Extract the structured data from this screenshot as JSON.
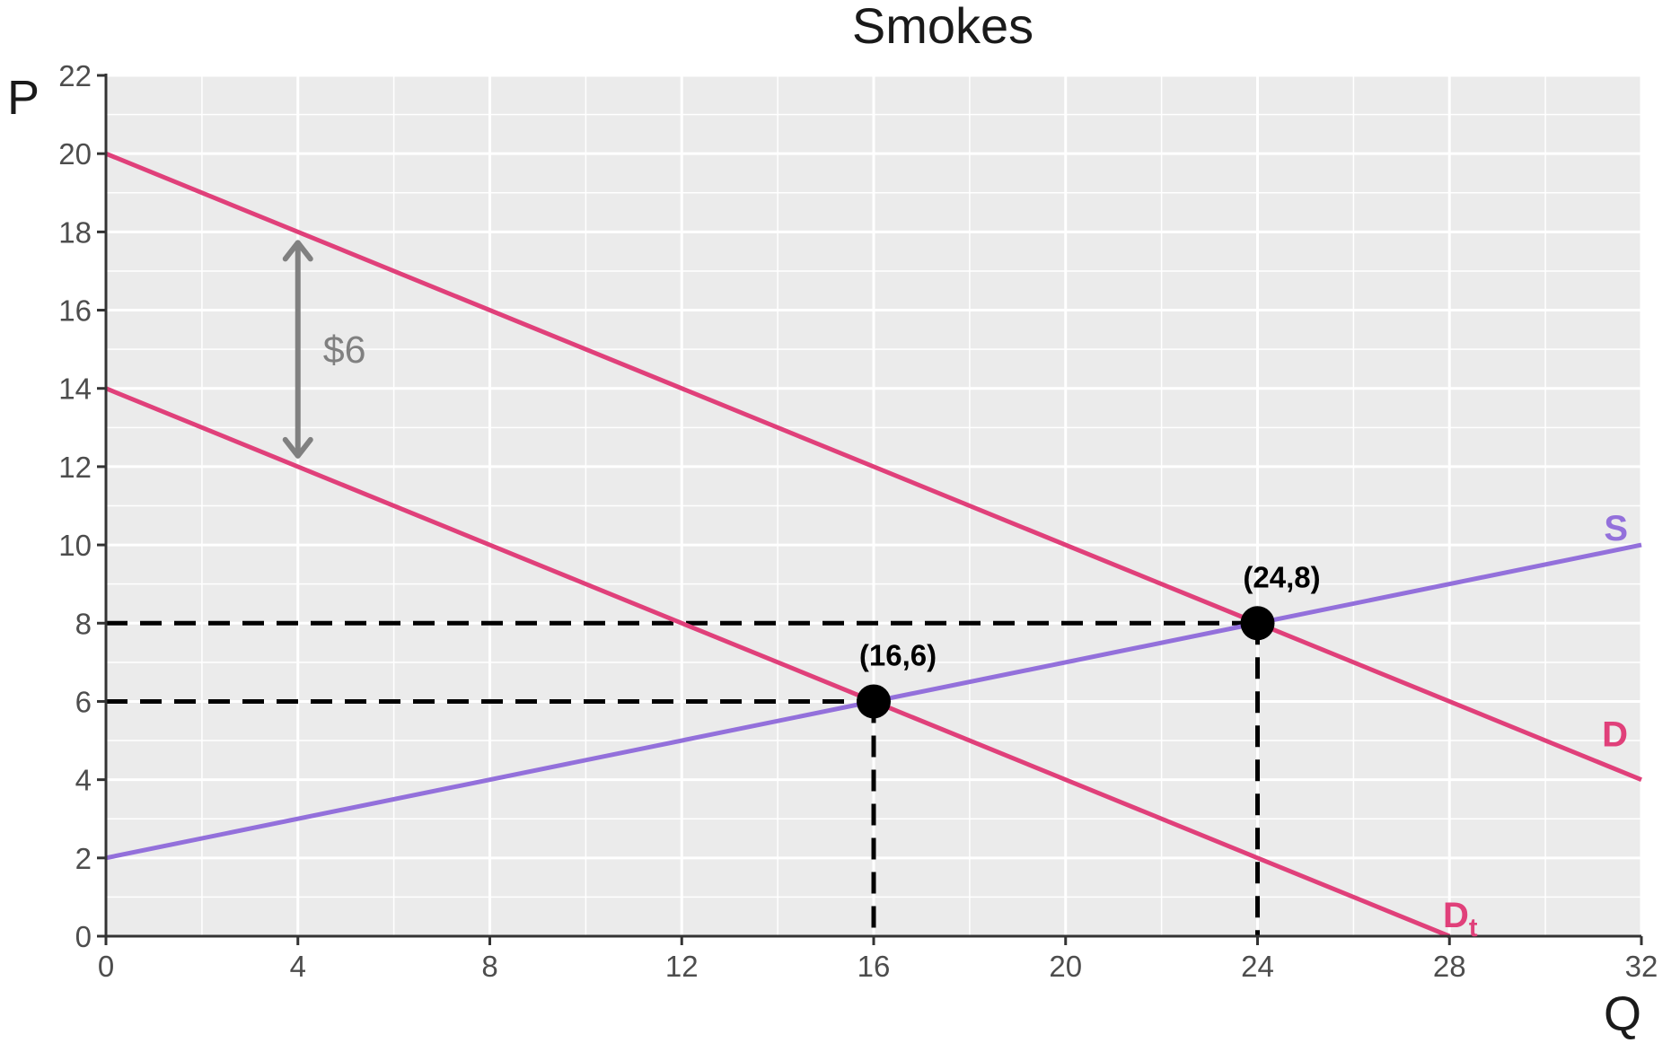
{
  "chart_data": {
    "type": "line",
    "title": "Smokes",
    "xlabel": "Q",
    "ylabel": "P",
    "xlim": [
      0,
      32
    ],
    "ylim": [
      0,
      22
    ],
    "xticks": [
      0,
      4,
      8,
      12,
      16,
      20,
      24,
      28,
      32
    ],
    "yticks": [
      0,
      2,
      4,
      6,
      8,
      10,
      12,
      14,
      16,
      18,
      20,
      22
    ],
    "grid": true,
    "series": [
      {
        "name": "S",
        "color": "#9370DB",
        "x": [
          0,
          32
        ],
        "y": [
          2,
          10
        ]
      },
      {
        "name": "D",
        "color": "#E0407A",
        "x": [
          0,
          32
        ],
        "y": [
          20,
          4
        ]
      },
      {
        "name": "D",
        "name_subscript": "t",
        "color": "#E0407A",
        "x": [
          0,
          28
        ],
        "y": [
          14,
          0
        ]
      }
    ],
    "points": [
      {
        "x": 16,
        "y": 6,
        "label": "(16,6)"
      },
      {
        "x": 24,
        "y": 8,
        "label": "(24,8)"
      }
    ],
    "tax_arrow": {
      "x": 4,
      "y_from": 12,
      "y_to": 18,
      "label": "$6",
      "color": "#808080"
    }
  }
}
